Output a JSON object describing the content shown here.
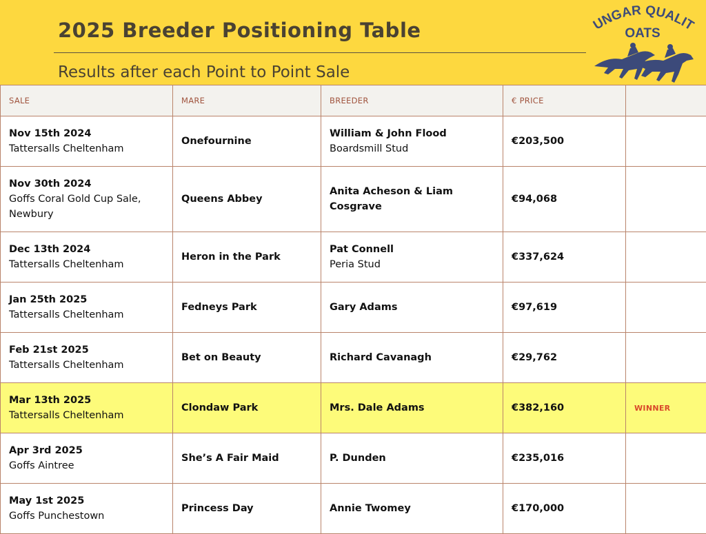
{
  "header": {
    "title": "2025 Breeder Positioning Table",
    "subtitle": "Results after each Point to Point Sale",
    "logo_text": "DUNGAR QUALITY OATS"
  },
  "table": {
    "columns": [
      "SALE",
      "MARE",
      "BREEDER",
      "€ PRICE",
      ""
    ],
    "rows": [
      {
        "date": "Nov 15th 2024",
        "venue": "Tattersalls Cheltenham",
        "mare": "Onefournine",
        "breeder": "William & John Flood",
        "stud": "Boardsmill Stud",
        "price": "€203,500",
        "note": ""
      },
      {
        "date": "Nov 30th 2024",
        "venue": "Goffs Coral Gold Cup Sale, Newbury",
        "mare": "Queens Abbey",
        "breeder": "Anita Acheson & Liam Cosgrave",
        "stud": "",
        "price": "€94,068",
        "note": ""
      },
      {
        "date": "Dec 13th 2024",
        "venue": "Tattersalls Cheltenham",
        "mare": "Heron in the Park",
        "breeder": "Pat Connell",
        "stud": "Peria Stud",
        "price": "€337,624",
        "note": ""
      },
      {
        "date": "Jan 25th 2025",
        "venue": "Tattersalls Cheltenham",
        "mare": "Fedneys Park",
        "breeder": "Gary Adams",
        "stud": "",
        "price": "€97,619",
        "note": ""
      },
      {
        "date": "Feb 21st 2025",
        "venue": "Tattersalls Cheltenham",
        "mare": "Bet on Beauty",
        "breeder": "Richard Cavanagh",
        "stud": "",
        "price": "€29,762",
        "note": ""
      },
      {
        "date": "Mar 13th 2025",
        "venue": "Tattersalls Cheltenham",
        "mare": "Clondaw Park",
        "breeder": "Mrs. Dale Adams",
        "stud": "",
        "price": "€382,160",
        "note": "WINNER"
      },
      {
        "date": "Apr 3rd 2025",
        "venue": "Goffs Aintree",
        "mare": "She’s A Fair Maid",
        "breeder": "P. Dunden",
        "stud": "",
        "price": "€235,016",
        "note": ""
      },
      {
        "date": "May 1st 2025",
        "venue": "Goffs Punchestown",
        "mare": "Princess Day",
        "breeder": "Annie Twomey",
        "stud": "",
        "price": "€170,000",
        "note": ""
      }
    ]
  },
  "colors": {
    "header_bg": "#fdd83f",
    "winner_bg": "#fdfb7a",
    "winner_text": "#d9482a",
    "logo": "#3c4a7a"
  }
}
